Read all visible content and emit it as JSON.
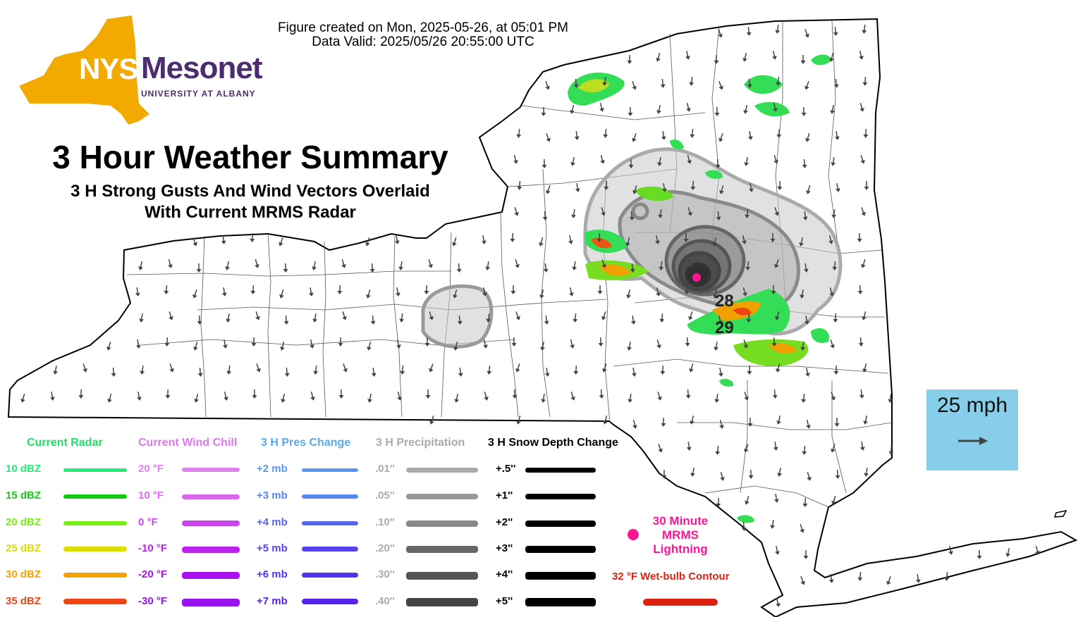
{
  "header": {
    "created": "Figure created on Mon, 2025-05-26, at 05:01 PM",
    "valid": "Data Valid: 2025/05/26 20:55:00 UTC"
  },
  "logo": {
    "nys": "NYS",
    "mesonet": "Mesonet",
    "university": "UNIVERSITY AT ALBANY",
    "color_gold": "#f2a900",
    "color_purple": "#4b2c6f"
  },
  "title": {
    "main": "3 Hour Weather Summary",
    "sub1": "3 H Strong Gusts And Wind Vectors Overlaid",
    "sub2": "With Current MRMS Radar"
  },
  "gust_labels": [
    "28",
    "29"
  ],
  "scale": {
    "label": "25 mph"
  },
  "legend": {
    "radar": {
      "heading": "Current Radar",
      "heading_color": "#22dd66",
      "items": [
        {
          "label": "10 dBZ",
          "color": "#22ee77"
        },
        {
          "label": "15 dBZ",
          "color": "#11cc11"
        },
        {
          "label": "20 dBZ",
          "color": "#77ee11"
        },
        {
          "label": "25 dBZ",
          "color": "#dddd00"
        },
        {
          "label": "30 dBZ",
          "color": "#f5a300"
        },
        {
          "label": "35 dBZ",
          "color": "#ee4411"
        }
      ]
    },
    "windchill": {
      "heading": "Current Wind Chill",
      "heading_color": "#dd77ee",
      "items": [
        {
          "label": "20 °F",
          "color": "#e080ee"
        },
        {
          "label": "10 °F",
          "color": "#dd66ee"
        },
        {
          "label": "0 °F",
          "color": "#cc44ee"
        },
        {
          "label": "-10 °F",
          "color": "#bb22ee"
        },
        {
          "label": "-20 °F",
          "color": "#aa11ee"
        },
        {
          "label": "-30 °F",
          "color": "#9911ee"
        }
      ]
    },
    "pressure": {
      "heading": "3 H Pres Change",
      "heading_color": "#55aaee",
      "items": [
        {
          "label": "+2 mb",
          "color": "#5599ee"
        },
        {
          "label": "+3 mb",
          "color": "#5588ee"
        },
        {
          "label": "+4 mb",
          "color": "#5566ee"
        },
        {
          "label": "+5 mb",
          "color": "#5544ee"
        },
        {
          "label": "+6 mb",
          "color": "#5533ee"
        },
        {
          "label": "+7 mb",
          "color": "#5522ee"
        }
      ]
    },
    "precip": {
      "heading": "3 H Precipitation",
      "heading_color": "#aaaaaa",
      "items": [
        {
          "label": ".01''",
          "color": "#aaaaaa"
        },
        {
          "label": ".05''",
          "color": "#999999"
        },
        {
          "label": ".10''",
          "color": "#888888"
        },
        {
          "label": ".20''",
          "color": "#666666"
        },
        {
          "label": ".30''",
          "color": "#555555"
        },
        {
          "label": ".40''",
          "color": "#444444"
        }
      ]
    },
    "snow": {
      "heading": "3 H Snow Depth Change",
      "heading_color": "#000000",
      "items": [
        {
          "label": "+.5''",
          "color": "#000000"
        },
        {
          "label": "+1''",
          "color": "#000000"
        },
        {
          "label": "+2''",
          "color": "#000000"
        },
        {
          "label": "+3''",
          "color": "#000000"
        },
        {
          "label": "+4''",
          "color": "#000000"
        },
        {
          "label": "+5''",
          "color": "#000000"
        }
      ]
    },
    "lightning": {
      "line1": "30 Minute",
      "line2": "MRMS",
      "line3": "Lightning",
      "color": "#ff1493"
    },
    "wetbulb": {
      "label": "32 °F Wet-bulb Contour",
      "color": "#dd2211"
    }
  }
}
